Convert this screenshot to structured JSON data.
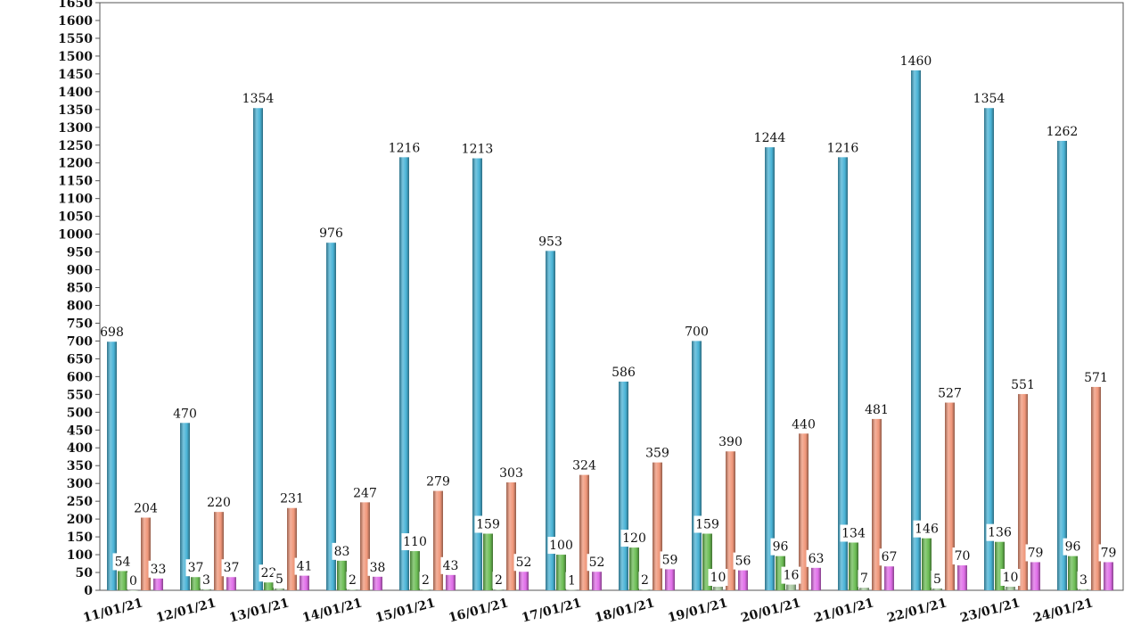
{
  "chart_data": {
    "type": "bar",
    "categories": [
      "11/01/21",
      "12/01/21",
      "13/01/21",
      "14/01/21",
      "15/01/21",
      "16/01/21",
      "17/01/21",
      "18/01/21",
      "19/01/21",
      "20/01/21",
      "21/01/21",
      "22/01/21",
      "23/01/21",
      "24/01/21"
    ],
    "series": [
      {
        "color": "#4ab3d6",
        "values": [
          698,
          470,
          1354,
          976,
          1216,
          1213,
          953,
          586,
          700,
          1244,
          1216,
          1460,
          1354,
          1262
        ]
      },
      {
        "color": "#6cbd55",
        "values": [
          54,
          37,
          22,
          83,
          110,
          159,
          100,
          120,
          159,
          96,
          134,
          146,
          136,
          96
        ]
      },
      {
        "color": "#a8c8a0",
        "values": [
          0,
          3,
          5,
          2,
          2,
          2,
          1,
          2,
          10,
          16,
          7,
          5,
          10,
          3
        ]
      },
      {
        "color": "#f0977a",
        "values": [
          204,
          220,
          231,
          247,
          279,
          303,
          324,
          359,
          390,
          440,
          481,
          527,
          551,
          571
        ]
      },
      {
        "color": "#e06ee8",
        "values": [
          33,
          37,
          41,
          38,
          43,
          52,
          52,
          59,
          56,
          63,
          67,
          70,
          79,
          79
        ]
      }
    ],
    "data_labels": [
      [
        "698",
        "54",
        "0",
        "204",
        "33"
      ],
      [
        "470",
        "37",
        "3",
        "220",
        "37"
      ],
      [
        "1354",
        "22",
        "5",
        "231",
        "41"
      ],
      [
        "976",
        "83",
        "2",
        "247",
        "38"
      ],
      [
        "1216",
        "110",
        "2",
        "279",
        "43"
      ],
      [
        "1213",
        "159",
        "2",
        "303",
        "52"
      ],
      [
        "953",
        "100",
        "1",
        "324",
        "52"
      ],
      [
        "586",
        "120",
        "2",
        "359",
        "59"
      ],
      [
        "700",
        "159",
        "10",
        "390",
        "56"
      ],
      [
        "1244",
        "96",
        "16",
        "440",
        "63"
      ],
      [
        "1216",
        "134",
        "7",
        "481",
        "67"
      ],
      [
        "1460",
        "146",
        "5",
        "527",
        "70"
      ],
      [
        "1354",
        "136",
        "10",
        "551",
        "79"
      ],
      [
        "1262",
        "96",
        "3",
        "571",
        "79"
      ]
    ],
    "ylim": [
      0,
      1650
    ],
    "ytick_step": 50,
    "grid": false,
    "legend": "none",
    "title": "",
    "xlabel": "",
    "ylabel": ""
  }
}
